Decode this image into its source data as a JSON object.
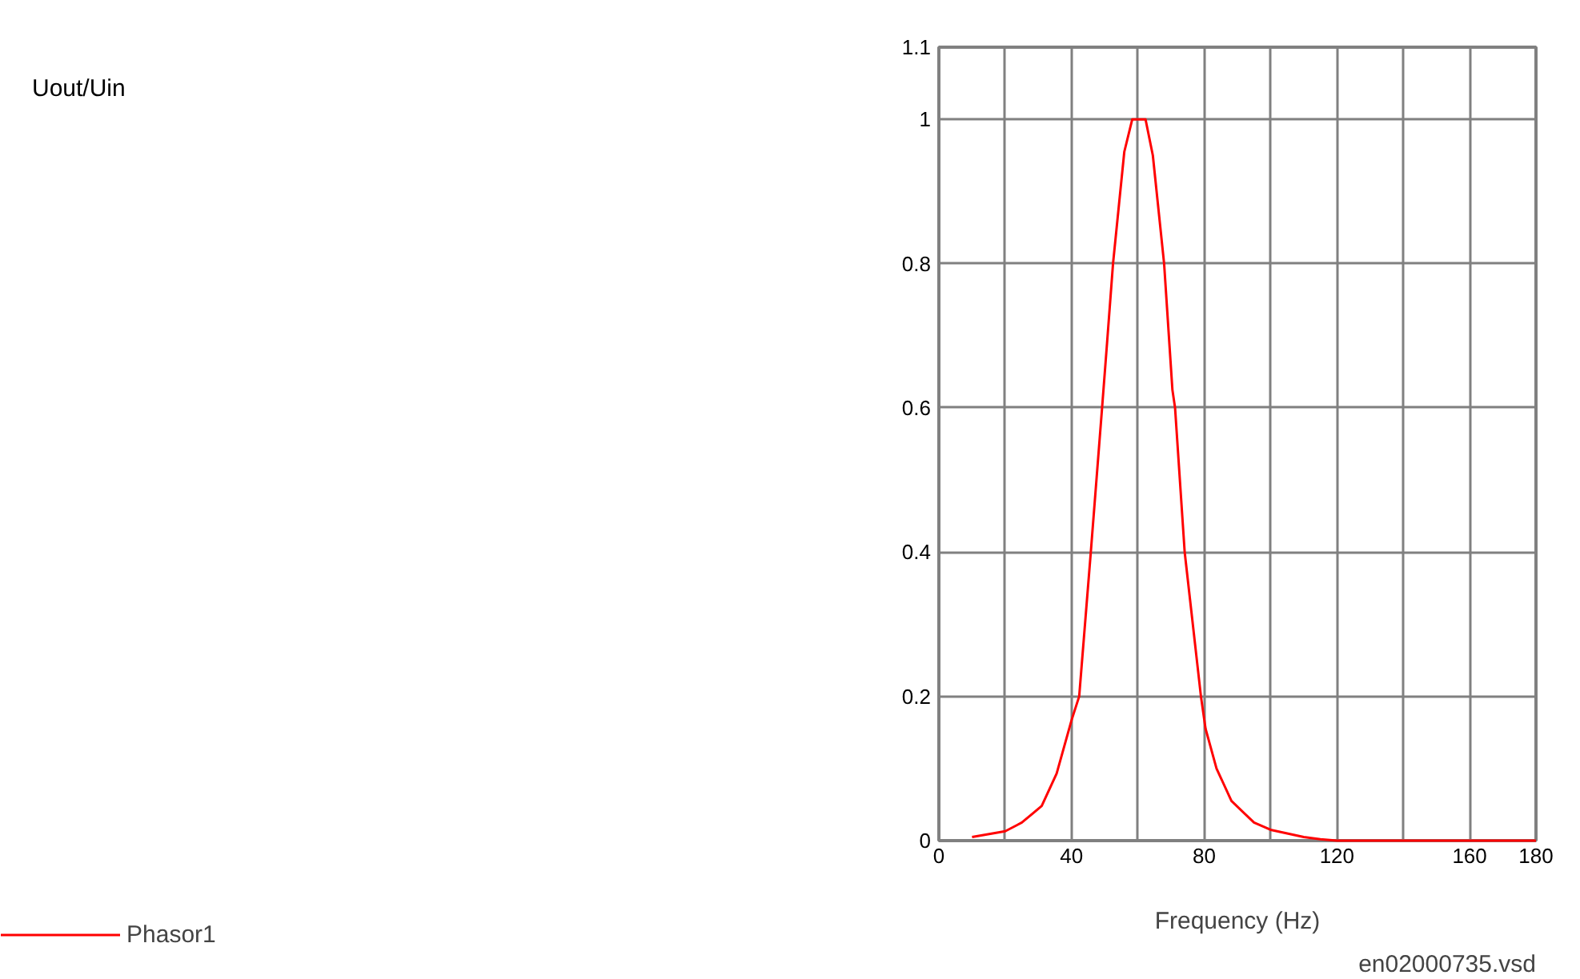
{
  "chart_data": {
    "type": "line",
    "xlabel": "Frequency (Hz)",
    "annotations": [
      "Uout/Uin",
      "en02000735.vsd"
    ],
    "xlim": [
      0,
      180
    ],
    "ylim": [
      0,
      1.1
    ],
    "xticks": [
      0,
      {
        "value": 20,
        "label": null
      },
      40,
      {
        "value": 60,
        "label": null
      },
      80,
      {
        "value": 100,
        "label": null
      },
      120,
      {
        "value": 140,
        "label": null
      },
      160,
      180
    ],
    "yticks": [
      0,
      0.2,
      0.4,
      0.6,
      0.8,
      1,
      1.1
    ],
    "grid": true,
    "legend": "left",
    "marker": "none",
    "line_style": "solid",
    "series": [
      {
        "name": "Phasor1",
        "color": "#ff0000",
        "x": [
          10,
          20,
          25,
          31,
          35.5,
          40,
          42.3,
          45.8,
          49.2,
          50.7,
          52.5,
          55.9,
          58.3,
          62.3,
          64.5,
          67.9,
          70.4,
          71.2,
          74.1,
          79,
          80.4,
          83.7,
          88.2,
          95,
          100,
          110,
          115,
          120,
          180
        ],
        "values": [
          0.005,
          0.013,
          0.025,
          0.048,
          0.093,
          0.167,
          0.2,
          0.4,
          0.6,
          0.69,
          0.8,
          0.955,
          1,
          1,
          0.95,
          0.8,
          0.625,
          0.6,
          0.4,
          0.2,
          0.155,
          0.1,
          0.055,
          0.025,
          0.015,
          0.005,
          0.002,
          0,
          0
        ]
      }
    ]
  }
}
